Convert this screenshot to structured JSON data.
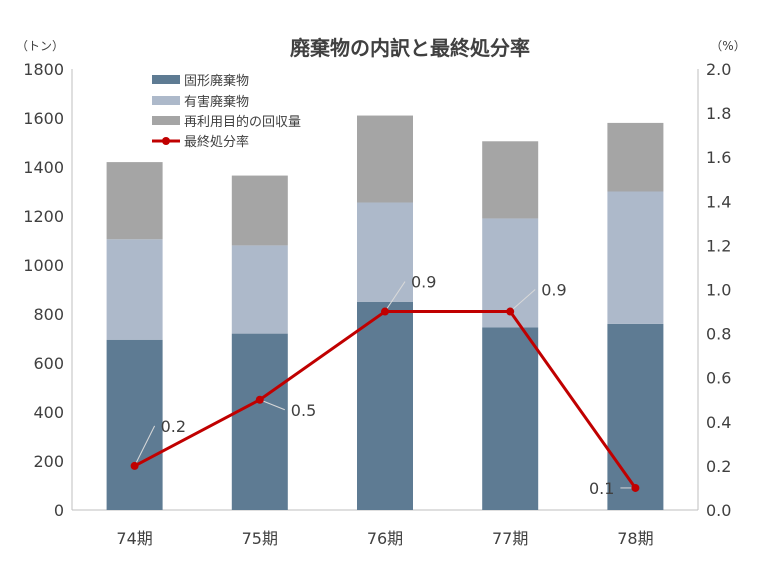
{
  "chart_data": {
    "type": "bar",
    "title": "廃棄物の内訳と最終処分率",
    "ylabel": "（トン）",
    "y2label": "（%）",
    "categories": [
      "74期",
      "75期",
      "76期",
      "77期",
      "78期"
    ],
    "ylim": [
      0,
      1800
    ],
    "yticks": [
      0,
      200,
      400,
      600,
      800,
      1000,
      1200,
      1400,
      1600,
      1800
    ],
    "y2lim": [
      0,
      2.0
    ],
    "y2ticks": [
      "0.0",
      "0.2",
      "0.4",
      "0.6",
      "0.8",
      "1.0",
      "1.2",
      "1.4",
      "1.6",
      "1.8",
      "2.0"
    ],
    "stacked": true,
    "grid": false,
    "legend_position": "top-left",
    "series": [
      {
        "name": "固形廃棄物",
        "values": [
          695,
          720,
          850,
          745,
          760
        ],
        "color": "#5e7b93"
      },
      {
        "name": "有害廃棄物",
        "values": [
          410,
          360,
          405,
          445,
          540
        ],
        "color": "#adb9ca"
      },
      {
        "name": "再利用目的の回収量",
        "values": [
          315,
          285,
          355,
          315,
          280
        ],
        "color": "#a5a5a5"
      }
    ],
    "line_series": {
      "name": "最終処分率",
      "type": "line",
      "axis": "right",
      "values": [
        0.2,
        0.5,
        0.9,
        0.9,
        0.1
      ],
      "labels": [
        "0.2",
        "0.5",
        "0.9",
        "0.9",
        "0.1"
      ],
      "color": "#c00000"
    }
  }
}
